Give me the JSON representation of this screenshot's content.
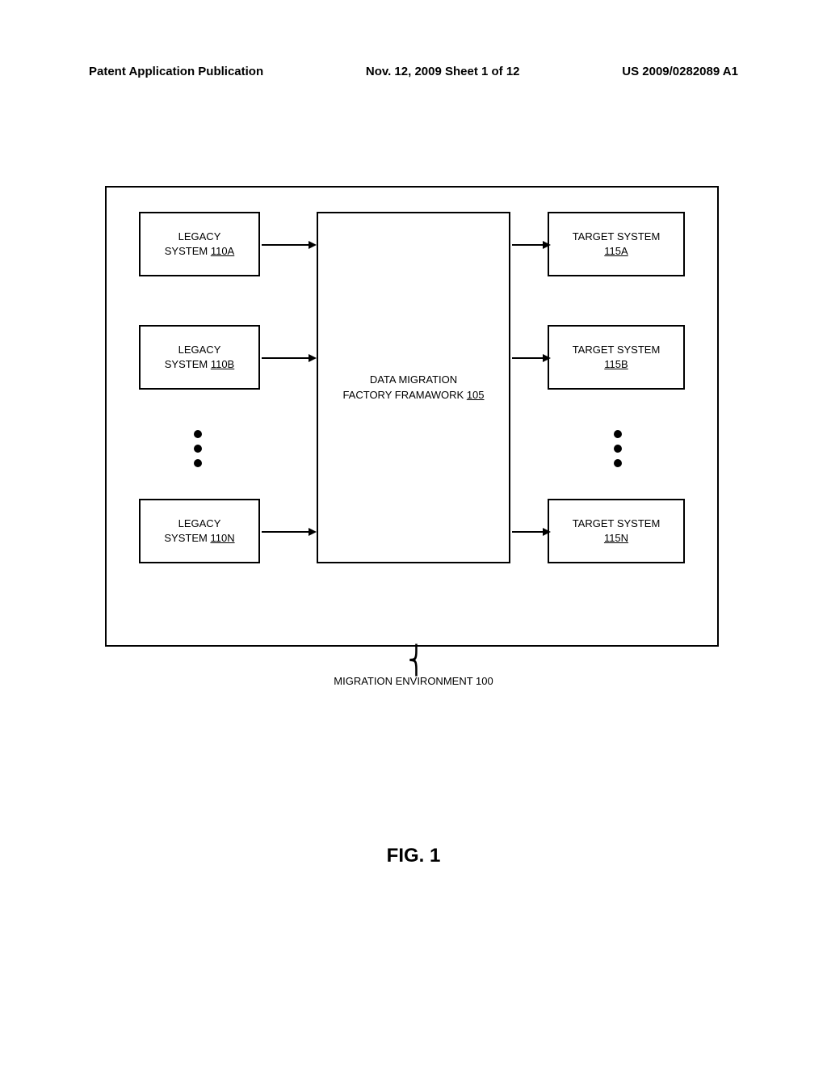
{
  "header": {
    "left": "Patent Application Publication",
    "center": "Nov. 12, 2009  Sheet 1 of 12",
    "right": "US 2009/0282089 A1"
  },
  "diagram": {
    "legacy": {
      "title": "LEGACY",
      "system": "SYSTEM ",
      "ids": {
        "a": "110A",
        "b": "110B",
        "n": "110N"
      }
    },
    "target": {
      "title": "TARGET SYSTEM",
      "ids": {
        "a": "115A",
        "b": "115B",
        "n": "115N"
      }
    },
    "center": {
      "line1": "DATA MIGRATION",
      "line2": "FACTORY FRAMAWORK ",
      "id": "105"
    },
    "env_label": "MIGRATION ENVIRONMENT 100",
    "figure": "FIG. 1"
  },
  "style": {
    "arrow_color": "#000000",
    "border_color": "#000000",
    "bg": "#ffffff"
  }
}
